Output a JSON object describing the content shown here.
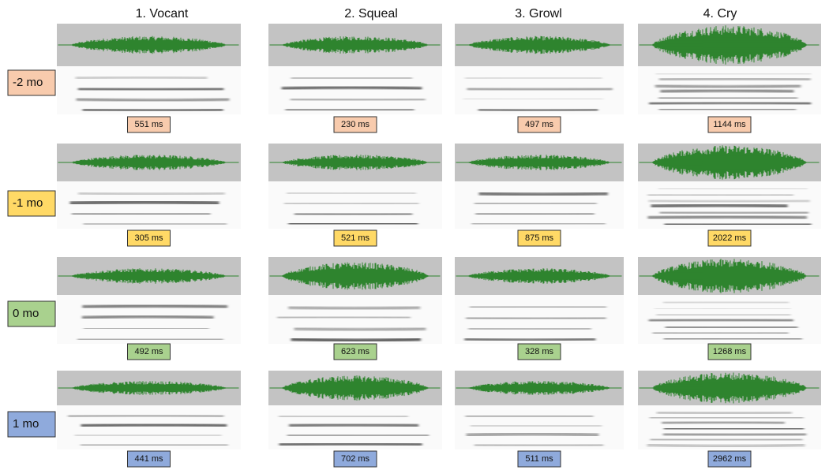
{
  "columns": [
    "1. Vocant",
    "2. Squeal",
    "3. Growl",
    "4. Cry"
  ],
  "rows": [
    {
      "label": "-2 mo",
      "color": "#f8cbad",
      "durations": [
        "551 ms",
        "230 ms",
        "497 ms",
        "1144 ms"
      ]
    },
    {
      "label": "-1 mo",
      "color": "#ffd966",
      "durations": [
        "305 ms",
        "521 ms",
        "875 ms",
        "2022 ms"
      ]
    },
    {
      "label": "0 mo",
      "color": "#a9d18e",
      "durations": [
        "492 ms",
        "623 ms",
        "328 ms",
        "1268 ms"
      ]
    },
    {
      "label": "1 mo",
      "color": "#8faadc",
      "durations": [
        "441 ms",
        "702 ms",
        "511 ms",
        "2962 ms"
      ]
    }
  ]
}
